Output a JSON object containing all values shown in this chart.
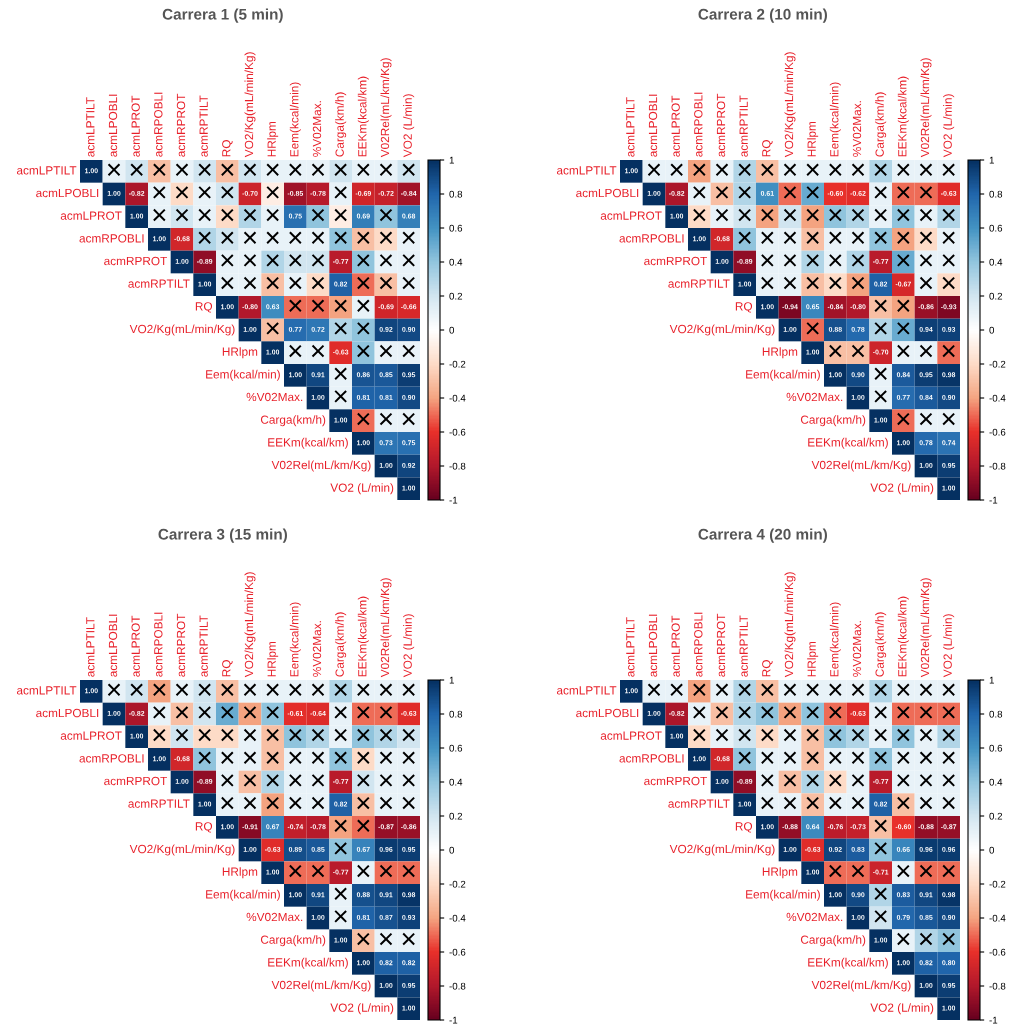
{
  "chart_data": [
    {
      "type": "heatmap",
      "title": "Carrera 1 (5 min)",
      "categories": [
        "acmLPTILT",
        "acmLPOBLI",
        "acmLPROT",
        "acmRPOBLI",
        "acmRPROT",
        "acmRPTILT",
        "RQ",
        "VO2/Kg(mL/min/Kg)",
        "HRlpm",
        "Eem(kcal/min)",
        "%V02Max.",
        "Carga(km/h)",
        "EEKm(kcal/km)",
        "V02Rel(mL/km/Kg)",
        "VO2 (L/min)"
      ],
      "y_categories": [
        "acmLPTILT",
        "acmLPOBLI",
        "acmLPROT",
        "acmRPOBLI",
        "acmRPROT",
        "acmRPTILT",
        "RQ",
        "VO2/Kg(mL/min/Kg)",
        "HRlpm",
        "Eem(kcal/min)",
        "%V02Max.",
        "Carga(km/h)",
        "EEKm(kcal/km)",
        "V02Rel(mL/km/Kg)",
        "VO2 (L/min)"
      ],
      "cells": [
        [
          1.0,
          0.1,
          0.2,
          -0.3,
          0.1,
          0.2,
          -0.3,
          0.2,
          0.1,
          0.1,
          0.1,
          0.2,
          0.1,
          0.1,
          0.2
        ],
        [
          null,
          1.0,
          -0.82,
          0.1,
          -0.2,
          0.1,
          0.2,
          -0.7,
          -0.1,
          -0.85,
          -0.78,
          0.1,
          -0.69,
          -0.72,
          -0.84
        ],
        [
          null,
          null,
          1.0,
          0.1,
          0.2,
          0.1,
          -0.2,
          0.3,
          0.1,
          0.75,
          0.4,
          -0.1,
          0.69,
          0.4,
          0.68
        ],
        [
          null,
          null,
          null,
          1.0,
          -0.68,
          0.3,
          0.2,
          0.1,
          0.1,
          0.1,
          0.1,
          0.4,
          -0.3,
          -0.2,
          0.1
        ],
        [
          null,
          null,
          null,
          null,
          1.0,
          -0.89,
          0.1,
          0.1,
          0.3,
          0.2,
          0.2,
          -0.77,
          0.4,
          0.1,
          0.1
        ],
        [
          null,
          null,
          null,
          null,
          null,
          1.0,
          0.1,
          0.1,
          -0.3,
          0.1,
          -0.2,
          0.82,
          -0.5,
          -0.3,
          0.1
        ],
        [
          null,
          null,
          null,
          null,
          null,
          null,
          1.0,
          -0.8,
          0.63,
          -0.5,
          -0.5,
          -0.4,
          0.1,
          -0.69,
          -0.66
        ],
        [
          null,
          null,
          null,
          null,
          null,
          null,
          null,
          1.0,
          -0.3,
          0.77,
          0.72,
          0.3,
          0.4,
          0.92,
          0.9
        ],
        [
          null,
          null,
          null,
          null,
          null,
          null,
          null,
          null,
          1.0,
          0.1,
          0.1,
          -0.63,
          0.4,
          0.1,
          0.1
        ],
        [
          null,
          null,
          null,
          null,
          null,
          null,
          null,
          null,
          null,
          1.0,
          0.91,
          0.1,
          0.86,
          0.85,
          0.95
        ],
        [
          null,
          null,
          null,
          null,
          null,
          null,
          null,
          null,
          null,
          null,
          1.0,
          0.1,
          0.81,
          0.81,
          0.9
        ],
        [
          null,
          null,
          null,
          null,
          null,
          null,
          null,
          null,
          null,
          null,
          null,
          1.0,
          -0.5,
          0.1,
          0.1
        ],
        [
          null,
          null,
          null,
          null,
          null,
          null,
          null,
          null,
          null,
          null,
          null,
          null,
          1.0,
          0.73,
          0.75
        ],
        [
          null,
          null,
          null,
          null,
          null,
          null,
          null,
          null,
          null,
          null,
          null,
          null,
          null,
          1.0,
          0.92
        ],
        [
          null,
          null,
          null,
          null,
          null,
          null,
          null,
          null,
          null,
          null,
          null,
          null,
          null,
          null,
          1.0
        ]
      ],
      "cell_labels": [
        [
          "1.00",
          "×",
          "×",
          "×",
          "×",
          "×",
          "×",
          "×",
          "×",
          "×",
          "×",
          "×",
          "×",
          "×",
          "×"
        ],
        [
          null,
          "1.00",
          "-0.82",
          "×",
          "×",
          "×",
          "×",
          "-0.70",
          "×",
          "-0.85",
          "-0.78",
          "×",
          "-0.69",
          "-0.72",
          "-0.84"
        ],
        [
          null,
          null,
          "1.00",
          "×",
          "×",
          "×",
          "×",
          "×",
          "×",
          "0.75",
          "×",
          "×",
          "0.69",
          "×",
          "0.68"
        ],
        [
          null,
          null,
          null,
          "1.00",
          "-0.68",
          "×",
          "×",
          "×",
          "×",
          "×",
          "×",
          "×",
          "×",
          "×",
          "×"
        ],
        [
          null,
          null,
          null,
          null,
          "1.00",
          "-0.89",
          "×",
          "×",
          "×",
          "×",
          "×",
          "-0.77",
          "×",
          "×",
          "×"
        ],
        [
          null,
          null,
          null,
          null,
          null,
          "1.00",
          "×",
          "×",
          "×",
          "×",
          "×",
          "0.82",
          "×",
          "×",
          "×"
        ],
        [
          null,
          null,
          null,
          null,
          null,
          null,
          "1.00",
          "-0.80",
          "0.63",
          "×",
          "×",
          "×",
          "×",
          "-0.69",
          "-0.66"
        ],
        [
          null,
          null,
          null,
          null,
          null,
          null,
          null,
          "1.00",
          "×",
          "0.77",
          "0.72",
          "×",
          "×",
          "0.92",
          "0.90"
        ],
        [
          null,
          null,
          null,
          null,
          null,
          null,
          null,
          null,
          "1.00",
          "×",
          "×",
          "-0.63",
          "×",
          "×",
          "×"
        ],
        [
          null,
          null,
          null,
          null,
          null,
          null,
          null,
          null,
          null,
          "1.00",
          "0.91",
          "×",
          "0.86",
          "0.85",
          "0.95"
        ],
        [
          null,
          null,
          null,
          null,
          null,
          null,
          null,
          null,
          null,
          null,
          "1.00",
          "×",
          "0.81",
          "0.81",
          "0.90"
        ],
        [
          null,
          null,
          null,
          null,
          null,
          null,
          null,
          null,
          null,
          null,
          null,
          "1.00",
          "×",
          "×",
          "×"
        ],
        [
          null,
          null,
          null,
          null,
          null,
          null,
          null,
          null,
          null,
          null,
          null,
          null,
          "1.00",
          "0.73",
          "0.75"
        ],
        [
          null,
          null,
          null,
          null,
          null,
          null,
          null,
          null,
          null,
          null,
          null,
          null,
          null,
          "1.00",
          "0.92"
        ],
        [
          null,
          null,
          null,
          null,
          null,
          null,
          null,
          null,
          null,
          null,
          null,
          null,
          null,
          null,
          "1.00"
        ]
      ],
      "clim": [
        -1,
        1
      ],
      "cticks": [
        1,
        0.8,
        0.6,
        0.4,
        0.2,
        0,
        -0.2,
        -0.4,
        -0.6,
        -0.8,
        -1
      ]
    },
    {
      "type": "heatmap",
      "title": "Carrera 2 (10 min)",
      "categories": [
        "acmLPTILT",
        "acmLPOBLI",
        "acmLPROT",
        "acmRPOBLI",
        "acmRPROT",
        "acmRPTILT",
        "RQ",
        "VO2/Kg(mL/min/Kg)",
        "HRlpm",
        "Eem(kcal/min)",
        "%V02Max.",
        "Carga(km/h)",
        "EEKm(kcal/km)",
        "V02Rel(mL/km/Kg)",
        "VO2 (L/min)"
      ],
      "y_categories": [
        "acmLPTILT",
        "acmLPOBLI",
        "acmLPROT",
        "acmRPOBLI",
        "acmRPROT",
        "acmRPTILT",
        "RQ",
        "VO2/Kg(mL/min/Kg)",
        "HRlpm",
        "Eem(kcal/min)",
        "%V02Max.",
        "Carga(km/h)",
        "EEKm(kcal/km)",
        "V02Rel(mL/km/Kg)",
        "VO2 (L/min)"
      ],
      "cells": [
        [
          1.0,
          0.1,
          0.1,
          -0.4,
          0.1,
          0.3,
          -0.3,
          0.1,
          0.1,
          0.1,
          0.1,
          0.3,
          0.1,
          0.1,
          0.1
        ],
        [
          null,
          1.0,
          -0.82,
          0.1,
          -0.3,
          0.3,
          0.61,
          -0.5,
          0.5,
          -0.6,
          -0.62,
          0.1,
          -0.5,
          -0.5,
          -0.63
        ],
        [
          null,
          null,
          1.0,
          -0.2,
          0.1,
          0.2,
          -0.4,
          0.2,
          -0.4,
          0.4,
          0.3,
          0.1,
          0.4,
          0.1,
          0.3
        ],
        [
          null,
          null,
          null,
          1.0,
          -0.68,
          0.4,
          0.1,
          0.1,
          -0.3,
          0.1,
          0.1,
          0.4,
          -0.4,
          -0.2,
          0.1
        ],
        [
          null,
          null,
          null,
          null,
          1.0,
          -0.89,
          0.1,
          0.1,
          0.3,
          0.1,
          0.3,
          -0.77,
          0.5,
          0.1,
          0.1
        ],
        [
          null,
          null,
          null,
          null,
          null,
          1.0,
          0.1,
          0.1,
          -0.3,
          -0.2,
          -0.4,
          0.82,
          -0.67,
          0.1,
          -0.2
        ],
        [
          null,
          null,
          null,
          null,
          null,
          null,
          1.0,
          -0.94,
          0.65,
          -0.84,
          -0.8,
          -0.3,
          -0.4,
          -0.86,
          -0.93
        ],
        [
          null,
          null,
          null,
          null,
          null,
          null,
          null,
          1.0,
          -0.5,
          0.88,
          0.78,
          0.3,
          0.5,
          0.94,
          0.93
        ],
        [
          null,
          null,
          null,
          null,
          null,
          null,
          null,
          null,
          1.0,
          -0.3,
          -0.3,
          -0.7,
          0.1,
          0.1,
          -0.5
        ],
        [
          null,
          null,
          null,
          null,
          null,
          null,
          null,
          null,
          null,
          1.0,
          0.9,
          0.1,
          0.84,
          0.95,
          0.98
        ],
        [
          null,
          null,
          null,
          null,
          null,
          null,
          null,
          null,
          null,
          null,
          1.0,
          0.1,
          0.77,
          0.84,
          0.9
        ],
        [
          null,
          null,
          null,
          null,
          null,
          null,
          null,
          null,
          null,
          null,
          null,
          1.0,
          -0.5,
          0.1,
          0.1
        ],
        [
          null,
          null,
          null,
          null,
          null,
          null,
          null,
          null,
          null,
          null,
          null,
          null,
          1.0,
          0.78,
          0.74
        ],
        [
          null,
          null,
          null,
          null,
          null,
          null,
          null,
          null,
          null,
          null,
          null,
          null,
          null,
          1.0,
          0.95
        ],
        [
          null,
          null,
          null,
          null,
          null,
          null,
          null,
          null,
          null,
          null,
          null,
          null,
          null,
          null,
          1.0
        ]
      ],
      "cell_labels": [
        [
          "1.00",
          "×",
          "×",
          "×",
          "×",
          "×",
          "×",
          "×",
          "×",
          "×",
          "×",
          "×",
          "×",
          "×",
          "×"
        ],
        [
          null,
          "1.00",
          "-0.82",
          "×",
          "×",
          "×",
          "0.61",
          "×",
          "×",
          "-0.60",
          "-0.62",
          "×",
          "×",
          "×",
          "-0.63"
        ],
        [
          null,
          null,
          "1.00",
          "×",
          "×",
          "×",
          "×",
          "×",
          "×",
          "×",
          "×",
          "×",
          "×",
          "×",
          "×"
        ],
        [
          null,
          null,
          null,
          "1.00",
          "-0.68",
          "×",
          "×",
          "×",
          "×",
          "×",
          "×",
          "×",
          "×",
          "×",
          "×"
        ],
        [
          null,
          null,
          null,
          null,
          "1.00",
          "-0.89",
          "×",
          "×",
          "×",
          "×",
          "×",
          "-0.77",
          "×",
          "×",
          "×"
        ],
        [
          null,
          null,
          null,
          null,
          null,
          "1.00",
          "×",
          "×",
          "×",
          "×",
          "×",
          "0.82",
          "-0.67",
          "×",
          "×"
        ],
        [
          null,
          null,
          null,
          null,
          null,
          null,
          "1.00",
          "-0.94",
          "0.65",
          "-0.84",
          "-0.80",
          "×",
          "×",
          "-0.86",
          "-0.93"
        ],
        [
          null,
          null,
          null,
          null,
          null,
          null,
          null,
          "1.00",
          "×",
          "0.88",
          "0.78",
          "×",
          "×",
          "0.94",
          "0.93"
        ],
        [
          null,
          null,
          null,
          null,
          null,
          null,
          null,
          null,
          "1.00",
          "×",
          "×",
          "-0.70",
          "×",
          "×",
          "×"
        ],
        [
          null,
          null,
          null,
          null,
          null,
          null,
          null,
          null,
          null,
          "1.00",
          "0.90",
          "×",
          "0.84",
          "0.95",
          "0.98"
        ],
        [
          null,
          null,
          null,
          null,
          null,
          null,
          null,
          null,
          null,
          null,
          "1.00",
          "×",
          "0.77",
          "0.84",
          "0.90"
        ],
        [
          null,
          null,
          null,
          null,
          null,
          null,
          null,
          null,
          null,
          null,
          null,
          "1.00",
          "×",
          "×",
          "×"
        ],
        [
          null,
          null,
          null,
          null,
          null,
          null,
          null,
          null,
          null,
          null,
          null,
          null,
          "1.00",
          "0.78",
          "0.74"
        ],
        [
          null,
          null,
          null,
          null,
          null,
          null,
          null,
          null,
          null,
          null,
          null,
          null,
          null,
          "1.00",
          "0.95"
        ],
        [
          null,
          null,
          null,
          null,
          null,
          null,
          null,
          null,
          null,
          null,
          null,
          null,
          null,
          null,
          "1.00"
        ]
      ],
      "clim": [
        -1,
        1
      ],
      "cticks": [
        1,
        0.8,
        0.6,
        0.4,
        0.2,
        0,
        -0.2,
        -0.4,
        -0.6,
        -0.8,
        -1
      ]
    },
    {
      "type": "heatmap",
      "title": "Carrera 3 (15 min)",
      "categories": [
        "acmLPTILT",
        "acmLPOBLI",
        "acmLPROT",
        "acmRPOBLI",
        "acmRPROT",
        "acmRPTILT",
        "RQ",
        "VO2/Kg(mL/min/Kg)",
        "HRlpm",
        "Eem(kcal/min)",
        "%V02Max.",
        "Carga(km/h)",
        "EEKm(kcal/km)",
        "V02Rel(mL/km/Kg)",
        "VO2 (L/min)"
      ],
      "y_categories": [
        "acmLPTILT",
        "acmLPOBLI",
        "acmLPROT",
        "acmRPOBLI",
        "acmRPROT",
        "acmRPTILT",
        "RQ",
        "VO2/Kg(mL/min/Kg)",
        "HRlpm",
        "Eem(kcal/min)",
        "%V02Max.",
        "Carga(km/h)",
        "EEKm(kcal/km)",
        "V02Rel(mL/km/Kg)",
        "VO2 (L/min)"
      ],
      "cells": [
        [
          1.0,
          0.1,
          0.2,
          -0.4,
          0.1,
          0.2,
          -0.3,
          0.1,
          0.1,
          0.1,
          0.1,
          0.3,
          0.1,
          0.1,
          0.1
        ],
        [
          null,
          1.0,
          -0.82,
          0.1,
          -0.3,
          0.2,
          0.5,
          -0.4,
          0.4,
          -0.61,
          -0.64,
          0.1,
          -0.5,
          -0.5,
          -0.63
        ],
        [
          null,
          null,
          1.0,
          -0.2,
          0.2,
          -0.2,
          -0.2,
          0.1,
          -0.3,
          0.4,
          0.3,
          0.1,
          0.4,
          0.3,
          0.2
        ],
        [
          null,
          null,
          null,
          1.0,
          -0.68,
          0.4,
          0.1,
          0.1,
          -0.3,
          0.1,
          0.1,
          0.4,
          -0.2,
          0.1,
          0.1
        ],
        [
          null,
          null,
          null,
          null,
          1.0,
          -0.89,
          0.1,
          -0.3,
          0.3,
          0.1,
          0.1,
          -0.77,
          0.2,
          0.1,
          0.1
        ],
        [
          null,
          null,
          null,
          null,
          null,
          1.0,
          0.1,
          0.1,
          -0.4,
          0.1,
          0.1,
          0.82,
          -0.3,
          0.1,
          0.1
        ],
        [
          null,
          null,
          null,
          null,
          null,
          null,
          1.0,
          -0.91,
          0.67,
          -0.74,
          -0.78,
          -0.4,
          -0.5,
          -0.87,
          -0.86
        ],
        [
          null,
          null,
          null,
          null,
          null,
          null,
          null,
          1.0,
          -0.63,
          0.89,
          0.85,
          0.4,
          0.67,
          0.96,
          0.95
        ],
        [
          null,
          null,
          null,
          null,
          null,
          null,
          null,
          null,
          1.0,
          -0.5,
          -0.5,
          -0.77,
          0.1,
          -0.5,
          -0.5
        ],
        [
          null,
          null,
          null,
          null,
          null,
          null,
          null,
          null,
          null,
          1.0,
          0.91,
          0.1,
          0.88,
          0.91,
          0.98
        ],
        [
          null,
          null,
          null,
          null,
          null,
          null,
          null,
          null,
          null,
          null,
          1.0,
          0.1,
          0.81,
          0.87,
          0.93
        ],
        [
          null,
          null,
          null,
          null,
          null,
          null,
          null,
          null,
          null,
          null,
          null,
          1.0,
          -0.3,
          0.1,
          0.1
        ],
        [
          null,
          null,
          null,
          null,
          null,
          null,
          null,
          null,
          null,
          null,
          null,
          null,
          1.0,
          0.82,
          0.82
        ],
        [
          null,
          null,
          null,
          null,
          null,
          null,
          null,
          null,
          null,
          null,
          null,
          null,
          null,
          1.0,
          0.95
        ],
        [
          null,
          null,
          null,
          null,
          null,
          null,
          null,
          null,
          null,
          null,
          null,
          null,
          null,
          null,
          1.0
        ]
      ],
      "cell_labels": [
        [
          "1.00",
          "×",
          "×",
          "×",
          "×",
          "×",
          "×",
          "×",
          "×",
          "×",
          "×",
          "×",
          "×",
          "×",
          "×"
        ],
        [
          null,
          "1.00",
          "-0.82",
          "×",
          "×",
          "×",
          "×",
          "×",
          "×",
          "-0.61",
          "-0.64",
          "×",
          "×",
          "×",
          "-0.63"
        ],
        [
          null,
          null,
          "1.00",
          "×",
          "×",
          "×",
          "×",
          "×",
          "×",
          "×",
          "×",
          "×",
          "×",
          "×",
          "×"
        ],
        [
          null,
          null,
          null,
          "1.00",
          "-0.68",
          "×",
          "×",
          "×",
          "×",
          "×",
          "×",
          "×",
          "×",
          "×",
          "×"
        ],
        [
          null,
          null,
          null,
          null,
          "1.00",
          "-0.89",
          "×",
          "×",
          "×",
          "×",
          "×",
          "-0.77",
          "×",
          "×",
          "×"
        ],
        [
          null,
          null,
          null,
          null,
          null,
          "1.00",
          "×",
          "×",
          "×",
          "×",
          "×",
          "0.82",
          "×",
          "×",
          "×"
        ],
        [
          null,
          null,
          null,
          null,
          null,
          null,
          "1.00",
          "-0.91",
          "0.67",
          "-0.74",
          "-0.78",
          "×",
          "×",
          "-0.87",
          "-0.86"
        ],
        [
          null,
          null,
          null,
          null,
          null,
          null,
          null,
          "1.00",
          "-0.63",
          "0.89",
          "0.85",
          "×",
          "0.67",
          "0.96",
          "0.95"
        ],
        [
          null,
          null,
          null,
          null,
          null,
          null,
          null,
          null,
          "1.00",
          "×",
          "×",
          "-0.77",
          "×",
          "×",
          "×"
        ],
        [
          null,
          null,
          null,
          null,
          null,
          null,
          null,
          null,
          null,
          "1.00",
          "0.91",
          "×",
          "0.88",
          "0.91",
          "0.98"
        ],
        [
          null,
          null,
          null,
          null,
          null,
          null,
          null,
          null,
          null,
          null,
          "1.00",
          "×",
          "0.81",
          "0.87",
          "0.93"
        ],
        [
          null,
          null,
          null,
          null,
          null,
          null,
          null,
          null,
          null,
          null,
          null,
          "1.00",
          "×",
          "×",
          "×"
        ],
        [
          null,
          null,
          null,
          null,
          null,
          null,
          null,
          null,
          null,
          null,
          null,
          null,
          "1.00",
          "0.82",
          "0.82"
        ],
        [
          null,
          null,
          null,
          null,
          null,
          null,
          null,
          null,
          null,
          null,
          null,
          null,
          null,
          "1.00",
          "0.95"
        ],
        [
          null,
          null,
          null,
          null,
          null,
          null,
          null,
          null,
          null,
          null,
          null,
          null,
          null,
          null,
          "1.00"
        ]
      ],
      "clim": [
        -1,
        1
      ],
      "cticks": [
        1,
        0.8,
        0.6,
        0.4,
        0.2,
        0,
        -0.2,
        -0.4,
        -0.6,
        -0.8,
        -1
      ]
    },
    {
      "type": "heatmap",
      "title": "Carrera 4 (20 min)",
      "categories": [
        "acmLPTILT",
        "acmLPOBLI",
        "acmLPROT",
        "acmRPOBLI",
        "acmRPROT",
        "acmRPTILT",
        "RQ",
        "VO2/Kg(mL/min/Kg)",
        "HRlpm",
        "Eem(kcal/min)",
        "%V02Max.",
        "Carga(km/h)",
        "EEKm(kcal/km)",
        "V02Rel(mL/km/Kg)",
        "VO2 (L/min)"
      ],
      "y_categories": [
        "acmLPTILT",
        "acmLPOBLI",
        "acmLPROT",
        "acmRPOBLI",
        "acmRPROT",
        "acmRPTILT",
        "RQ",
        "VO2/Kg(mL/min/Kg)",
        "HRlpm",
        "Eem(kcal/min)",
        "%V02Max.",
        "Carga(km/h)",
        "EEKm(kcal/km)",
        "V02Rel(mL/km/Kg)",
        "VO2 (L/min)"
      ],
      "cells": [
        [
          1.0,
          0.1,
          0.1,
          -0.4,
          0.1,
          0.3,
          -0.3,
          0.1,
          0.1,
          0.1,
          0.1,
          0.3,
          0.1,
          0.1,
          0.1
        ],
        [
          null,
          1.0,
          -0.82,
          0.1,
          -0.3,
          0.3,
          0.4,
          -0.4,
          0.4,
          -0.5,
          -0.63,
          0.1,
          -0.5,
          -0.5,
          -0.5
        ],
        [
          null,
          null,
          1.0,
          -0.2,
          0.1,
          0.2,
          -0.2,
          0.1,
          -0.3,
          0.4,
          0.3,
          0.1,
          0.4,
          0.1,
          0.3
        ],
        [
          null,
          null,
          null,
          1.0,
          -0.68,
          0.4,
          0.1,
          0.1,
          -0.3,
          0.1,
          0.1,
          0.4,
          0.1,
          0.1,
          0.1
        ],
        [
          null,
          null,
          null,
          null,
          1.0,
          -0.89,
          0.1,
          -0.3,
          0.3,
          -0.2,
          0.1,
          -0.77,
          0.1,
          0.1,
          0.1
        ],
        [
          null,
          null,
          null,
          null,
          null,
          1.0,
          0.1,
          0.1,
          -0.3,
          0.1,
          0.1,
          0.82,
          -0.3,
          0.1,
          0.1
        ],
        [
          null,
          null,
          null,
          null,
          null,
          null,
          1.0,
          -0.88,
          0.64,
          -0.76,
          -0.73,
          -0.3,
          -0.6,
          -0.88,
          -0.87
        ],
        [
          null,
          null,
          null,
          null,
          null,
          null,
          null,
          1.0,
          -0.63,
          0.92,
          0.83,
          0.4,
          0.66,
          0.96,
          0.96
        ],
        [
          null,
          null,
          null,
          null,
          null,
          null,
          null,
          null,
          1.0,
          -0.5,
          -0.5,
          -0.71,
          0.1,
          -0.5,
          -0.5
        ],
        [
          null,
          null,
          null,
          null,
          null,
          null,
          null,
          null,
          null,
          1.0,
          0.9,
          0.3,
          0.83,
          0.91,
          0.98
        ],
        [
          null,
          null,
          null,
          null,
          null,
          null,
          null,
          null,
          null,
          null,
          1.0,
          0.2,
          0.79,
          0.85,
          0.9
        ],
        [
          null,
          null,
          null,
          null,
          null,
          null,
          null,
          null,
          null,
          null,
          null,
          1.0,
          0.1,
          0.3,
          0.4
        ],
        [
          null,
          null,
          null,
          null,
          null,
          null,
          null,
          null,
          null,
          null,
          null,
          null,
          1.0,
          0.82,
          0.8
        ],
        [
          null,
          null,
          null,
          null,
          null,
          null,
          null,
          null,
          null,
          null,
          null,
          null,
          null,
          1.0,
          0.95
        ],
        [
          null,
          null,
          null,
          null,
          null,
          null,
          null,
          null,
          null,
          null,
          null,
          null,
          null,
          null,
          1.0
        ]
      ],
      "cell_labels": [
        [
          "1.00",
          "×",
          "×",
          "×",
          "×",
          "×",
          "×",
          "×",
          "×",
          "×",
          "×",
          "×",
          "×",
          "×",
          "×"
        ],
        [
          null,
          "1.00",
          "-0.82",
          "×",
          "×",
          "×",
          "×",
          "×",
          "×",
          "×",
          "-0.63",
          "×",
          "×",
          "×",
          "×"
        ],
        [
          null,
          null,
          "1.00",
          "×",
          "×",
          "×",
          "×",
          "×",
          "×",
          "×",
          "×",
          "×",
          "×",
          "×",
          "×"
        ],
        [
          null,
          null,
          null,
          "1.00",
          "-0.68",
          "×",
          "×",
          "×",
          "×",
          "×",
          "×",
          "×",
          "×",
          "×",
          "×"
        ],
        [
          null,
          null,
          null,
          null,
          "1.00",
          "-0.89",
          "×",
          "×",
          "×",
          "×",
          "×",
          "-0.77",
          "×",
          "×",
          "×"
        ],
        [
          null,
          null,
          null,
          null,
          null,
          "1.00",
          "×",
          "×",
          "×",
          "×",
          "×",
          "0.82",
          "×",
          "×",
          "×"
        ],
        [
          null,
          null,
          null,
          null,
          null,
          null,
          "1.00",
          "-0.88",
          "0.64",
          "-0.76",
          "-0.73",
          "×",
          "-0.60",
          "-0.88",
          "-0.87"
        ],
        [
          null,
          null,
          null,
          null,
          null,
          null,
          null,
          "1.00",
          "-0.63",
          "0.92",
          "0.83",
          "×",
          "0.66",
          "0.96",
          "0.96"
        ],
        [
          null,
          null,
          null,
          null,
          null,
          null,
          null,
          null,
          "1.00",
          "×",
          "×",
          "-0.71",
          "×",
          "×",
          "×"
        ],
        [
          null,
          null,
          null,
          null,
          null,
          null,
          null,
          null,
          null,
          "1.00",
          "0.90",
          "×",
          "0.83",
          "0.91",
          "0.98"
        ],
        [
          null,
          null,
          null,
          null,
          null,
          null,
          null,
          null,
          null,
          null,
          "1.00",
          "×",
          "0.79",
          "0.85",
          "0.90"
        ],
        [
          null,
          null,
          null,
          null,
          null,
          null,
          null,
          null,
          null,
          null,
          null,
          "1.00",
          "×",
          "×",
          "×"
        ],
        [
          null,
          null,
          null,
          null,
          null,
          null,
          null,
          null,
          null,
          null,
          null,
          null,
          "1.00",
          "0.82",
          "0.80"
        ],
        [
          null,
          null,
          null,
          null,
          null,
          null,
          null,
          null,
          null,
          null,
          null,
          null,
          null,
          "1.00",
          "0.95"
        ],
        [
          null,
          null,
          null,
          null,
          null,
          null,
          null,
          null,
          null,
          null,
          null,
          null,
          null,
          null,
          "1.00"
        ]
      ],
      "clim": [
        -1,
        1
      ],
      "cticks": [
        1,
        0.8,
        0.6,
        0.4,
        0.2,
        0,
        -0.2,
        -0.4,
        -0.6,
        -0.8,
        -1
      ]
    }
  ]
}
